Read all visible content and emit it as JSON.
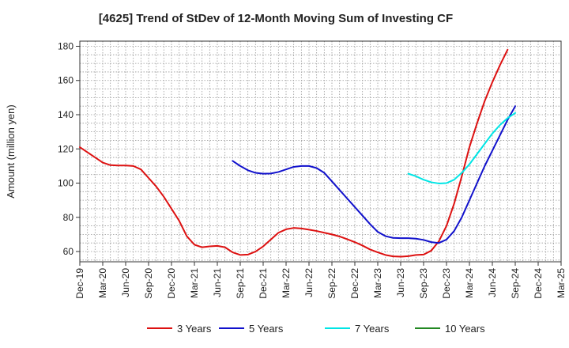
{
  "chart_data": {
    "type": "line",
    "title": "[4625]  Trend of StDev of 12-Month Moving Sum of Investing CF",
    "ylabel": "Amount (million yen)",
    "xlabel": "",
    "ylim": [
      54,
      183
    ],
    "yticks": [
      60,
      80,
      100,
      120,
      140,
      160,
      180
    ],
    "x_range": [
      "2019-12",
      "2025-03"
    ],
    "x_ticks": [
      "Dec-19",
      "Mar-20",
      "Jun-20",
      "Sep-20",
      "Dec-20",
      "Mar-21",
      "Jun-21",
      "Sep-21",
      "Dec-21",
      "Mar-22",
      "Jun-22",
      "Sep-22",
      "Dec-22",
      "Mar-23",
      "Jun-23",
      "Sep-23",
      "Dec-23",
      "Mar-24",
      "Jun-24",
      "Sep-24",
      "Dec-24",
      "Mar-25"
    ],
    "grid": true,
    "legend_position": "bottom",
    "series": [
      {
        "name": "3 Years",
        "color": "#dd1111",
        "points": [
          [
            "2019-12",
            121
          ],
          [
            "2020-01",
            118
          ],
          [
            "2020-02",
            115
          ],
          [
            "2020-03",
            112
          ],
          [
            "2020-04",
            110.5
          ],
          [
            "2020-05",
            110.3
          ],
          [
            "2020-06",
            110.3
          ],
          [
            "2020-07",
            110
          ],
          [
            "2020-08",
            108
          ],
          [
            "2020-09",
            103
          ],
          [
            "2020-10",
            98
          ],
          [
            "2020-11",
            92
          ],
          [
            "2020-12",
            85
          ],
          [
            "2021-01",
            78
          ],
          [
            "2021-02",
            69
          ],
          [
            "2021-03",
            64
          ],
          [
            "2021-04",
            62.5
          ],
          [
            "2021-05",
            63
          ],
          [
            "2021-06",
            63.3
          ],
          [
            "2021-07",
            62.5
          ],
          [
            "2021-08",
            59.5
          ],
          [
            "2021-09",
            58
          ],
          [
            "2021-10",
            58.2
          ],
          [
            "2021-11",
            60
          ],
          [
            "2021-12",
            63
          ],
          [
            "2022-01",
            67
          ],
          [
            "2022-02",
            71
          ],
          [
            "2022-03",
            73
          ],
          [
            "2022-04",
            73.8
          ],
          [
            "2022-05",
            73.5
          ],
          [
            "2022-06",
            72.8
          ],
          [
            "2022-07",
            72
          ],
          [
            "2022-08",
            71
          ],
          [
            "2022-09",
            70
          ],
          [
            "2022-10",
            68.8
          ],
          [
            "2022-11",
            67.2
          ],
          [
            "2022-12",
            65.5
          ],
          [
            "2023-01",
            63.5
          ],
          [
            "2023-02",
            61.2
          ],
          [
            "2023-03",
            59.5
          ],
          [
            "2023-04",
            58
          ],
          [
            "2023-05",
            57.2
          ],
          [
            "2023-06",
            57
          ],
          [
            "2023-07",
            57.3
          ],
          [
            "2023-08",
            58
          ],
          [
            "2023-09",
            58.2
          ],
          [
            "2023-10",
            60.5
          ],
          [
            "2023-11",
            66
          ],
          [
            "2023-12",
            75
          ],
          [
            "2024-01",
            88
          ],
          [
            "2024-02",
            104
          ],
          [
            "2024-03",
            121
          ],
          [
            "2024-04",
            135
          ],
          [
            "2024-05",
            148
          ],
          [
            "2024-06",
            159
          ],
          [
            "2024-07",
            169
          ],
          [
            "2024-08",
            178
          ]
        ]
      },
      {
        "name": "5 Years",
        "color": "#1111cc",
        "points": [
          [
            "2021-08",
            113
          ],
          [
            "2021-09",
            110
          ],
          [
            "2021-10",
            107.5
          ],
          [
            "2021-11",
            106
          ],
          [
            "2021-12",
            105.5
          ],
          [
            "2022-01",
            105.6
          ],
          [
            "2022-02",
            106.5
          ],
          [
            "2022-03",
            108
          ],
          [
            "2022-04",
            109.5
          ],
          [
            "2022-05",
            110
          ],
          [
            "2022-06",
            110
          ],
          [
            "2022-07",
            108.8
          ],
          [
            "2022-08",
            106
          ],
          [
            "2022-09",
            101
          ],
          [
            "2022-10",
            96
          ],
          [
            "2022-11",
            91
          ],
          [
            "2022-12",
            86
          ],
          [
            "2023-01",
            81
          ],
          [
            "2023-02",
            76
          ],
          [
            "2023-03",
            71.5
          ],
          [
            "2023-04",
            69
          ],
          [
            "2023-05",
            68
          ],
          [
            "2023-06",
            67.8
          ],
          [
            "2023-07",
            67.8
          ],
          [
            "2023-08",
            67.5
          ],
          [
            "2023-09",
            66.8
          ],
          [
            "2023-10",
            65.5
          ],
          [
            "2023-11",
            65
          ],
          [
            "2023-12",
            67
          ],
          [
            "2024-01",
            72
          ],
          [
            "2024-02",
            80
          ],
          [
            "2024-03",
            90
          ],
          [
            "2024-04",
            100
          ],
          [
            "2024-05",
            110
          ],
          [
            "2024-06",
            119
          ],
          [
            "2024-07",
            128
          ],
          [
            "2024-08",
            137
          ],
          [
            "2024-09",
            145
          ]
        ]
      },
      {
        "name": "7 Years",
        "color": "#00e5e5",
        "points": [
          [
            "2023-07",
            105.5
          ],
          [
            "2023-08",
            104
          ],
          [
            "2023-09",
            102
          ],
          [
            "2023-10",
            100.5
          ],
          [
            "2023-11",
            99.8
          ],
          [
            "2023-12",
            100
          ],
          [
            "2024-01",
            102
          ],
          [
            "2024-02",
            106
          ],
          [
            "2024-03",
            111
          ],
          [
            "2024-04",
            117
          ],
          [
            "2024-05",
            123
          ],
          [
            "2024-06",
            129
          ],
          [
            "2024-07",
            134
          ],
          [
            "2024-08",
            138
          ],
          [
            "2024-09",
            141
          ]
        ]
      },
      {
        "name": "10 Years",
        "color": "#228822",
        "points": []
      }
    ]
  }
}
